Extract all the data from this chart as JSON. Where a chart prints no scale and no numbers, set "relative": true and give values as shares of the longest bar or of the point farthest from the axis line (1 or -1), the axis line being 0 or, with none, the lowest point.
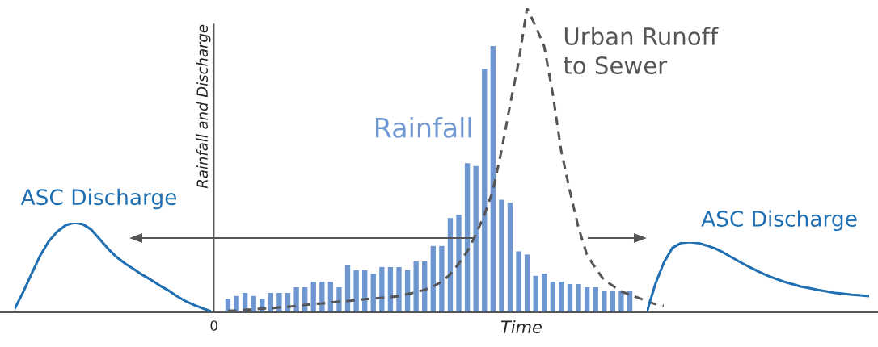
{
  "chart_data": [
    {
      "type": "bar",
      "relative": true,
      "xlabel": "Time",
      "ylabel": "Rainfall and Discharge",
      "legend": false,
      "annotations": [
        "0"
      ],
      "categories": [
        null,
        null,
        null,
        null,
        null,
        null,
        null,
        null,
        null,
        null,
        null,
        null,
        null,
        null,
        null,
        null,
        null,
        null,
        null,
        null,
        null,
        null,
        null,
        null,
        null,
        null,
        null,
        null,
        null,
        null,
        null,
        null,
        null,
        null,
        null,
        null,
        null,
        null,
        null,
        null,
        null,
        null,
        null,
        null,
        null,
        null,
        null,
        null
      ],
      "series": [
        {
          "name": "Rainfall",
          "color": "#6e97d2",
          "values": [
            0.051,
            0.061,
            0.073,
            0.061,
            0.051,
            0.073,
            0.073,
            0.073,
            0.094,
            0.094,
            0.115,
            0.115,
            0.115,
            0.094,
            0.178,
            0.158,
            0.158,
            0.145,
            0.17,
            0.17,
            0.17,
            0.158,
            0.191,
            0.191,
            0.249,
            0.249,
            0.354,
            0.366,
            0.56,
            0.549,
            0.914,
            1.0,
            0.423,
            0.411,
            0.229,
            0.217,
            0.137,
            0.145,
            0.115,
            0.115,
            0.106,
            0.106,
            0.094,
            0.094,
            0.082,
            0.082,
            0.082,
            0.082
          ]
        }
      ]
    },
    {
      "type": "line",
      "relative": true,
      "line_style": "dashed",
      "legend": false,
      "categories": [
        null,
        null,
        null,
        null,
        null,
        null,
        null,
        null,
        null,
        null,
        null,
        null,
        null,
        null,
        null,
        null,
        null,
        null,
        null,
        null,
        null,
        null,
        null,
        null,
        null,
        null,
        null,
        null,
        null,
        null,
        null,
        null,
        null,
        null,
        null,
        null,
        null,
        null,
        null,
        null,
        null,
        null,
        null,
        null,
        null,
        null,
        null,
        null,
        null,
        null,
        null,
        null
      ],
      "series": [
        {
          "name": "Urban Runoff\nto Sewer",
          "color": "#555555",
          "values": [
            0.005,
            0.006,
            0.008,
            0.01,
            0.012,
            0.013,
            0.016,
            0.018,
            0.021,
            0.024,
            0.027,
            0.029,
            0.032,
            0.035,
            0.037,
            0.04,
            0.043,
            0.045,
            0.048,
            0.05,
            0.053,
            0.06,
            0.066,
            0.074,
            0.085,
            0.1,
            0.125,
            0.16,
            0.2,
            0.255,
            0.32,
            0.4,
            0.53,
            0.68,
            0.82,
            1.0,
            0.94,
            0.875,
            0.72,
            0.53,
            0.4,
            0.28,
            0.19,
            0.146,
            0.106,
            0.088,
            0.069,
            0.058,
            0.048,
            0.037,
            0.027,
            0.021
          ]
        }
      ]
    },
    {
      "type": "line",
      "relative": true,
      "line_style": "solid",
      "legend": false,
      "categories": [
        null,
        null,
        null,
        null,
        null,
        null,
        null,
        null,
        null,
        null,
        null,
        null,
        null,
        null,
        null,
        null,
        null,
        null,
        null,
        null,
        null,
        null,
        null,
        null
      ],
      "series": [
        {
          "name": "ASC Discharge",
          "color": "#1f6fb2",
          "values": [
            0.037,
            0.224,
            0.432,
            0.633,
            0.793,
            0.901,
            0.973,
            1.0,
            0.983,
            0.922,
            0.813,
            0.704,
            0.612,
            0.541,
            0.48,
            0.415,
            0.361,
            0.299,
            0.245,
            0.18,
            0.126,
            0.082,
            0.044,
            0.01
          ]
        }
      ]
    },
    {
      "type": "line",
      "relative": true,
      "line_style": "solid",
      "legend": false,
      "categories": [
        null,
        null,
        null,
        null,
        null,
        null,
        null,
        null,
        null,
        null,
        null,
        null,
        null,
        null,
        null,
        null,
        null,
        null,
        null,
        null,
        null,
        null,
        null,
        null,
        null,
        null,
        null
      ],
      "series": [
        {
          "name": "ASC Discharge",
          "color": "#1f6fb2",
          "values": [
            0.0,
            0.403,
            0.71,
            0.918,
            0.987,
            1.0,
            0.987,
            0.952,
            0.909,
            0.848,
            0.779,
            0.71,
            0.645,
            0.584,
            0.528,
            0.481,
            0.437,
            0.403,
            0.368,
            0.346,
            0.32,
            0.299,
            0.277,
            0.264,
            0.251,
            0.242,
            0.229
          ]
        }
      ]
    }
  ]
}
